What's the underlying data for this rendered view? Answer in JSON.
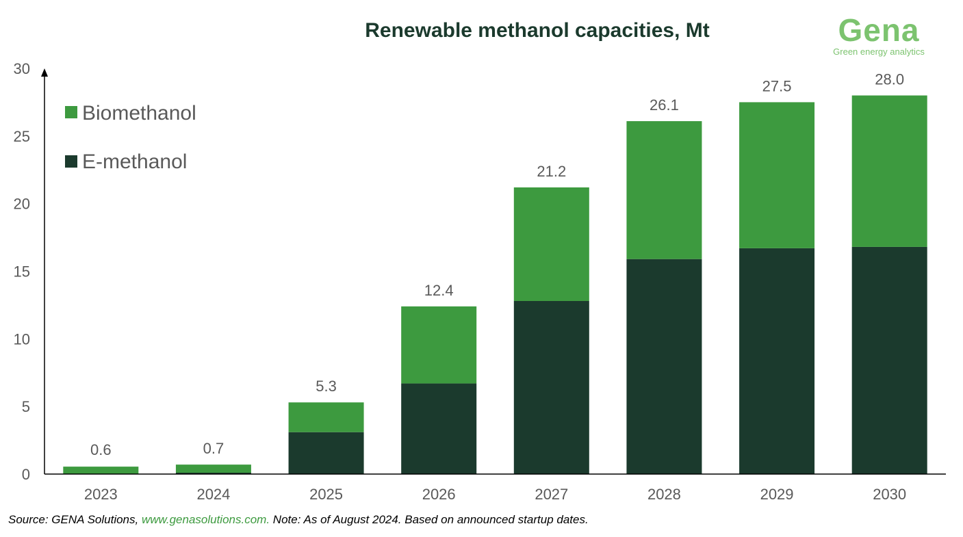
{
  "chart_data": {
    "type": "bar",
    "stacked": true,
    "title": "Renewable methanol capacities, Mt",
    "xlabel": "",
    "ylabel": "",
    "ylim": [
      0,
      30
    ],
    "yticks": [
      0,
      5,
      10,
      15,
      20,
      25,
      30
    ],
    "categories": [
      "2023",
      "2024",
      "2025",
      "2026",
      "2027",
      "2028",
      "2029",
      "2030"
    ],
    "series": [
      {
        "name": "E-methanol",
        "color": "#1b3a2d",
        "values": [
          0.0,
          0.1,
          3.1,
          6.7,
          12.8,
          15.9,
          16.7,
          16.8
        ]
      },
      {
        "name": "Biomethanol",
        "color": "#3d9a3f",
        "values": [
          0.55,
          0.6,
          2.2,
          5.7,
          8.4,
          10.2,
          10.8,
          11.2
        ]
      }
    ],
    "totals": [
      "0.6",
      "0.7",
      "5.3",
      "12.4",
      "21.2",
      "26.1",
      "27.5",
      "28.0"
    ],
    "legend": [
      "Biomethanol",
      "E-methanol"
    ],
    "legend_position": "top-left",
    "grid": false
  },
  "logo": {
    "name": "Gena",
    "tagline": "Green energy analytics",
    "color": "#7cc36f"
  },
  "footer": {
    "prefix": "Source: GENA Solutions, ",
    "link": "www.genasolutions.com.",
    "suffix": " Note: As of August 2024. Based on announced startup dates."
  },
  "colors": {
    "title": "#1b3a2d",
    "text": "#595959",
    "axis": "#000000"
  }
}
